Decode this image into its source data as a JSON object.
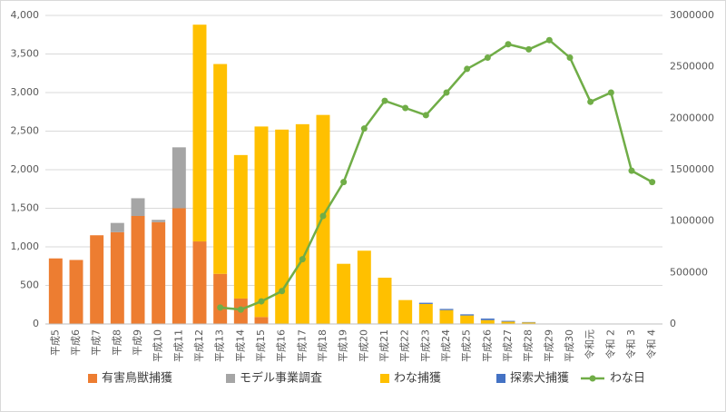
{
  "chart_data": {
    "type": "bar",
    "categories": [
      "平成5",
      "平成6",
      "平成7",
      "平成8",
      "平成9",
      "平成10",
      "平成11",
      "平成12",
      "平成13",
      "平成14",
      "平成15",
      "平成16",
      "平成17",
      "平成18",
      "平成19",
      "平成20",
      "平成21",
      "平成22",
      "平成23",
      "平成24",
      "平成25",
      "平成26",
      "平成27",
      "平成28",
      "平成29",
      "平成30",
      "令和元",
      "令和 2",
      "令和 3",
      "令和 4"
    ],
    "series": [
      {
        "name": "有害鳥獣捕獲",
        "color": "#ED7D31",
        "values": [
          850,
          830,
          1150,
          1190,
          1400,
          1320,
          1500,
          1070,
          650,
          330,
          90,
          0,
          0,
          0,
          0,
          0,
          0,
          0,
          0,
          0,
          0,
          0,
          0,
          0,
          0,
          0,
          0,
          0,
          0,
          0
        ]
      },
      {
        "name": "モデル事業調査",
        "color": "#A5A5A5",
        "values": [
          0,
          0,
          0,
          120,
          230,
          30,
          790,
          0,
          0,
          0,
          0,
          0,
          0,
          0,
          0,
          0,
          0,
          0,
          0,
          0,
          0,
          0,
          0,
          0,
          0,
          0,
          0,
          0,
          0,
          0
        ]
      },
      {
        "name": "わな捕獲",
        "color": "#FFC000",
        "values": [
          0,
          0,
          0,
          0,
          0,
          0,
          0,
          2810,
          2720,
          1860,
          2470,
          2520,
          2590,
          2710,
          780,
          950,
          600,
          310,
          260,
          180,
          110,
          50,
          30,
          20,
          5,
          0,
          0,
          0,
          0,
          0
        ]
      },
      {
        "name": "探索犬捕獲",
        "color": "#4472C4",
        "values": [
          0,
          0,
          0,
          0,
          0,
          0,
          0,
          0,
          0,
          0,
          0,
          0,
          0,
          0,
          0,
          0,
          0,
          0,
          15,
          15,
          15,
          20,
          10,
          5,
          0,
          0,
          0,
          0,
          0,
          0
        ]
      },
      {
        "name": "わな日",
        "color": "#70AD47",
        "type": "line",
        "axis": "y2",
        "values": [
          null,
          null,
          null,
          null,
          null,
          null,
          null,
          null,
          160000,
          140000,
          220000,
          320000,
          630000,
          1050000,
          1380000,
          1900000,
          2170000,
          2100000,
          2030000,
          2250000,
          2480000,
          2590000,
          2720000,
          2670000,
          2760000,
          2590000,
          2160000,
          2250000,
          1490000,
          1380000
        ]
      }
    ],
    "ylim": [
      0,
      4000
    ],
    "yticks": [
      0,
      500,
      {
        "value": 1000,
        "label": "1,000"
      },
      {
        "value": 1500,
        "label": "1,500"
      },
      {
        "value": 2000,
        "label": "2,000"
      },
      {
        "value": 2500,
        "label": "2,500"
      },
      {
        "value": 3000,
        "label": "3,000"
      },
      {
        "value": 3500,
        "label": "3,500"
      },
      {
        "value": 4000,
        "label": "4,000"
      }
    ],
    "y2lim": [
      0,
      3000000
    ],
    "y2ticks": [
      0,
      500000,
      1000000,
      1500000,
      2000000,
      2500000,
      3000000
    ],
    "grid": true,
    "stacked": true,
    "legend": "bottom"
  }
}
